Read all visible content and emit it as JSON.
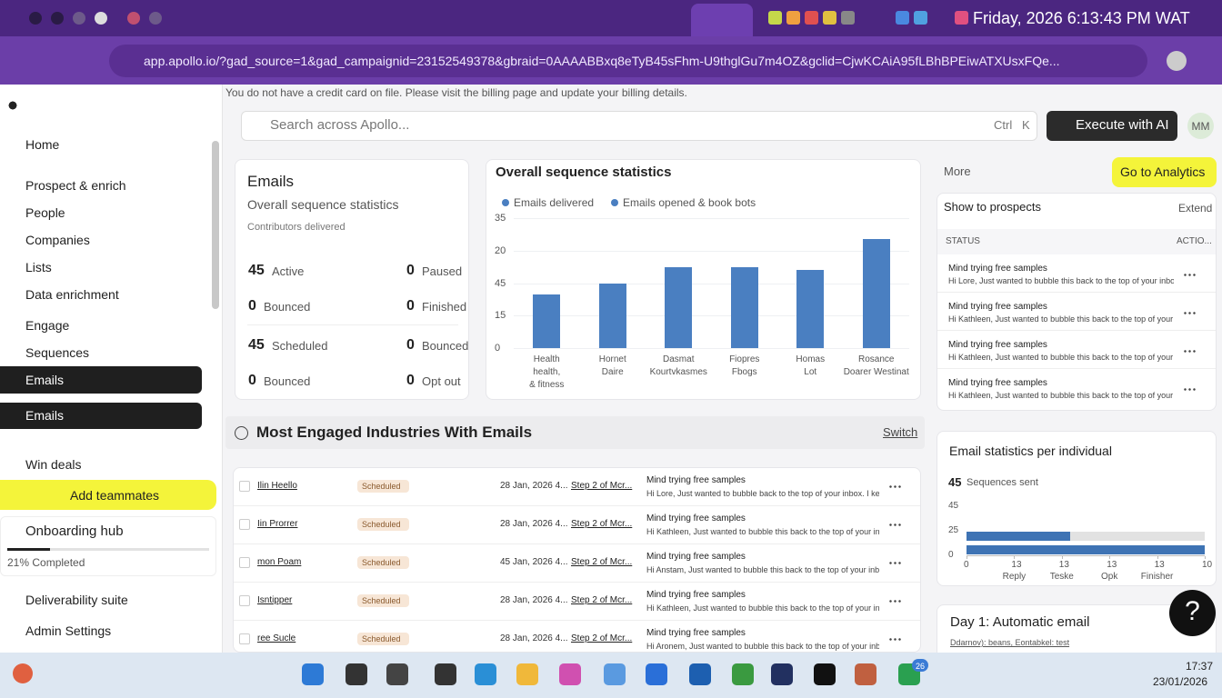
{
  "browser": {
    "clock": "Friday, 2026 6:13:43 PM WAT",
    "url": "app.apollo.io/?gad_source=1&gad_campaignid=23152549378&gbraid=0AAAABBxq8eTyB45sFhm-U9thglGu7m4OZ&gclid=CjwKCAiA95fLBhBPEiwATXUsxFQe..."
  },
  "banner": "You do not have a credit card on file. Please visit the billing page and update your billing details.",
  "sidebar": {
    "home": "Home",
    "prospect": "Prospect & enrich",
    "people": "People",
    "companies": "Companies",
    "lists": "Lists",
    "enrichment": "Data enrichment",
    "engage": "Engage",
    "sequences": "Sequences",
    "emails_active": "Emails",
    "emails": "Emails",
    "win_deals": "Win deals",
    "add_teammates": "Add teammates",
    "onboarding": "Onboarding hub",
    "onboarding_progress": 21,
    "progress_label": "21% Completed",
    "deliverability": "Deliverability suite",
    "admin": "Admin Settings"
  },
  "search": {
    "placeholder": "Search across Apollo...",
    "key1": "Ctrl",
    "key2": "K",
    "execute": "Execute with AI",
    "avatar": "MM"
  },
  "emails_card": {
    "title": "Emails",
    "subtitle": "Overall sequence statistics",
    "note": "Contributors delivered",
    "stats": [
      {
        "value": 45,
        "label": "Active"
      },
      {
        "value": 0,
        "label": "Paused"
      },
      {
        "value": 0,
        "label": "Bounced"
      },
      {
        "value": 0,
        "label": "Finished"
      },
      {
        "value": 45,
        "label": "Scheduled"
      },
      {
        "value": 0,
        "label": "Bounced"
      },
      {
        "value": 0,
        "label": "Bounced"
      },
      {
        "value": 0,
        "label": "Opt out"
      }
    ]
  },
  "chart_data": {
    "type": "bar",
    "title": "Overall sequence statistics",
    "categories": [
      "Health\nhealth,\n& fitness",
      "Hornet\nDaire",
      "Dasmat\nKourtvkasmes",
      "Fiopres\nFbogs",
      "Homas\nLot",
      "Rosance\nDoarer Westinat"
    ],
    "series": [
      {
        "name": "Emails delivered",
        "color": "#4a7fc1",
        "values": [
          1.65,
          1.98,
          2.5,
          2.5,
          2.4,
          3.35
        ]
      },
      {
        "name": "Emails opened & book bots",
        "color": "#4a7fc1",
        "values": [
          null,
          null,
          null,
          null,
          null,
          null
        ]
      }
    ],
    "ylim": [
      0,
      4
    ],
    "yticks": [
      0,
      {
        "value": 1,
        "label": "15"
      },
      {
        "value": 2,
        "label": "45"
      },
      {
        "value": 3,
        "label": "20"
      },
      {
        "value": 4,
        "label": "35"
      }
    ]
  },
  "right_panel": {
    "more": "More",
    "analytics": "Go to Analytics",
    "title": "Show to prospects",
    "extend": "Extend",
    "col_status": "STATUS",
    "col_action": "ACTIO...",
    "rows": [
      {
        "title": "Mind trying free samples",
        "body": "Hi Lore, Just wanted to bubble this back to the top of your inbox."
      },
      {
        "title": "Mind trying free samples",
        "body": "Hi Kathleen, Just wanted to bubble this back to the top of your inbox. I k"
      },
      {
        "title": "Mind trying free samples",
        "body": "Hi Kathleen, Just wanted to bubble this back to the top of your inbox."
      },
      {
        "title": "Mind trying free samples",
        "body": "Hi Kathleen, Just wanted to bubble this back to the top of your inbox."
      }
    ]
  },
  "industries": {
    "title": "Most Engaged Industries With Emails",
    "switch": "Switch",
    "rows": [
      {
        "name": "Ilin Heello",
        "status": "Scheduled",
        "date": "28 Jan, 2026 4...",
        "step": "Step 2 of Mcr...",
        "subject": "Mind trying free samples",
        "body": "Hi Lore, Just wanted to bubble back to the top of your inbox. I kee"
      },
      {
        "name": "Iin Prorrer",
        "status": "Scheduled",
        "date": "28 Jan, 2026 4...",
        "step": "Step 2 of Mcr...",
        "subject": "Mind trying free samples",
        "body": "Hi Kathleen, Just wanted to bubble this back to the top of your inbox. I k"
      },
      {
        "name": "mon Poam",
        "status": "Scheduled",
        "date": "45 Jan, 2026 4...",
        "step": "Step 2 of Mcr...",
        "subject": "Mind trying free samples",
        "body": "Hi Anstam, Just wanted to bubble this back to the top of your inbox."
      },
      {
        "name": "Isntipper",
        "status": "Scheduled",
        "date": "28 Jan, 2026 4...",
        "step": "Step 2 of Mcr...",
        "subject": "Mind trying free samples",
        "body": "Hi Kathleen, Just wanted to bubble this back to the top of your inbox. I I"
      },
      {
        "name": "ree Sucle",
        "status": "Scheduled",
        "date": "28 Jan, 2026 4...",
        "step": "Step 2 of Mcr...",
        "subject": "Mind trying free samples",
        "body": "Hi Aronem, Just wanted to bubble this back to the top of your inbox. I"
      }
    ]
  },
  "individual": {
    "title": "Email statistics per individual",
    "count": 45,
    "count_label": "Sequences sent",
    "chart": {
      "type": "bar",
      "orientation": "horizontal",
      "yticks_labels": [
        "45",
        "25",
        "0"
      ],
      "values": [
        2.17,
        5
      ],
      "color": "#3e73b4",
      "track_color": "#e2e2e2",
      "xlim": [
        0,
        5
      ],
      "xticks": [
        0,
        {
          "value": 1,
          "label": "13"
        },
        {
          "value": 2,
          "label": "13"
        },
        {
          "value": 3,
          "label": "13"
        },
        {
          "value": 4,
          "label": "13"
        },
        {
          "value": 5,
          "label": "10"
        }
      ],
      "xsub_labels": [
        "Reply",
        "Teske",
        "Opk",
        "Finisher"
      ]
    }
  },
  "day1": {
    "title": "Day 1: Automatic email",
    "body": "Ddarnov): beans, Eontabkel: test"
  },
  "help": "?",
  "taskbar": {
    "time": "17:37",
    "date": "23/01/2026",
    "badge": "26"
  }
}
